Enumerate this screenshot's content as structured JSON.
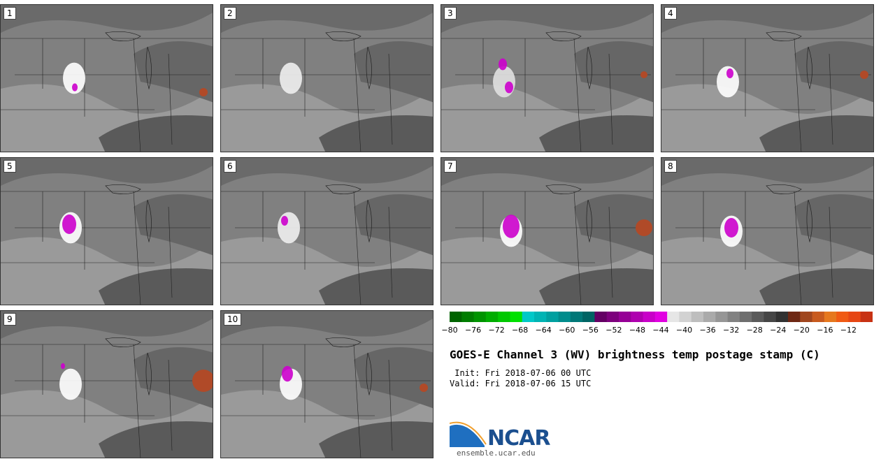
{
  "panels": [
    {
      "label": "1",
      "wv": [
        [
          105,
          105,
          110,
          "#ffffff"
        ],
        [
          106,
          118,
          4,
          "#cc00cc"
        ]
      ],
      "hot": [
        [
          300,
          125,
          6
        ]
      ]
    },
    {
      "label": "2",
      "wv": [
        [
          100,
          105,
          115,
          "#eeeeee"
        ]
      ],
      "hot": []
    },
    {
      "label": "3",
      "wv": [
        [
          90,
          110,
          115,
          "#e0e0e0"
        ],
        [
          88,
          85,
          6,
          "#cc00cc"
        ],
        [
          97,
          118,
          6,
          "#cc00cc"
        ]
      ],
      "hot": [
        [
          933,
          100,
          5
        ]
      ]
    },
    {
      "label": "4",
      "wv": [
        [
          95,
          110,
          110,
          "#ffffff"
        ],
        [
          98,
          98,
          5,
          "#cc00cc"
        ]
      ],
      "hot": [
        [
          928,
          100,
          6
        ]
      ]
    },
    {
      "label": "5",
      "wv": [
        [
          100,
          100,
          330,
          "#ffffff"
        ],
        [
          98,
          95,
          10,
          "#cc00cc"
        ]
      ],
      "hot": []
    },
    {
      "label": "6",
      "wv": [
        [
          97,
          100,
          325,
          "#eeeeee"
        ],
        [
          91,
          90,
          5,
          "#cc00cc"
        ]
      ],
      "hot": []
    },
    {
      "label": "7",
      "wv": [
        [
          100,
          105,
          325,
          "#ffffff"
        ],
        [
          100,
          98,
          12,
          "#cc00cc"
        ]
      ],
      "hot": [
        [
          922,
          100,
          12
        ]
      ]
    },
    {
      "label": "8",
      "wv": [
        [
          100,
          105,
          325,
          "#ffffff"
        ],
        [
          100,
          100,
          10,
          "#cc00cc"
        ]
      ],
      "hot": []
    },
    {
      "label": "9",
      "wv": [
        [
          100,
          105,
          545,
          "#ffffff"
        ],
        [
          89,
          79,
          3,
          "#cc00cc"
        ]
      ],
      "hot": [
        [
          290,
          100,
          16
        ]
      ]
    },
    {
      "label": "10",
      "wv": [
        [
          100,
          105,
          545,
          "#ffffff"
        ],
        [
          95,
          90,
          8,
          "#cc00cc"
        ]
      ],
      "hot": [
        [
          610,
          110,
          6
        ]
      ]
    }
  ],
  "colorbar": {
    "colors": [
      "#006400",
      "#007d00",
      "#009400",
      "#00ad00",
      "#00c800",
      "#00e100",
      "#00c8c8",
      "#00b4b4",
      "#00a0a0",
      "#008c8c",
      "#007878",
      "#006464",
      "#640064",
      "#7d007d",
      "#960096",
      "#af00af",
      "#c800c8",
      "#e100e1",
      "#e6e6e6",
      "#d2d2d2",
      "#bebebe",
      "#aaaaaa",
      "#969696",
      "#828282",
      "#6e6e6e",
      "#5a5a5a",
      "#464646",
      "#323232",
      "#6e2814",
      "#a0461e",
      "#c85a1e",
      "#e6781e",
      "#f05a14",
      "#e64614",
      "#c83214"
    ],
    "ticks": [
      "−80",
      "−76",
      "−72",
      "−68",
      "−64",
      "−60",
      "−56",
      "−52",
      "−48",
      "−44",
      "−40",
      "−36",
      "−32",
      "−28",
      "−24",
      "−20",
      "−16",
      "−12"
    ]
  },
  "title": "GOES-E Channel 3 (WV) brightness temp postage stamp (C)",
  "init": " Init: Fri 2018-07-06 00 UTC",
  "valid": "Valid: Fri 2018-07-06 15 UTC",
  "logo": {
    "text": "NCAR",
    "color": "#1b4f8f",
    "accent": "#1f6fc0"
  },
  "site": "ensemble.ucar.edu"
}
